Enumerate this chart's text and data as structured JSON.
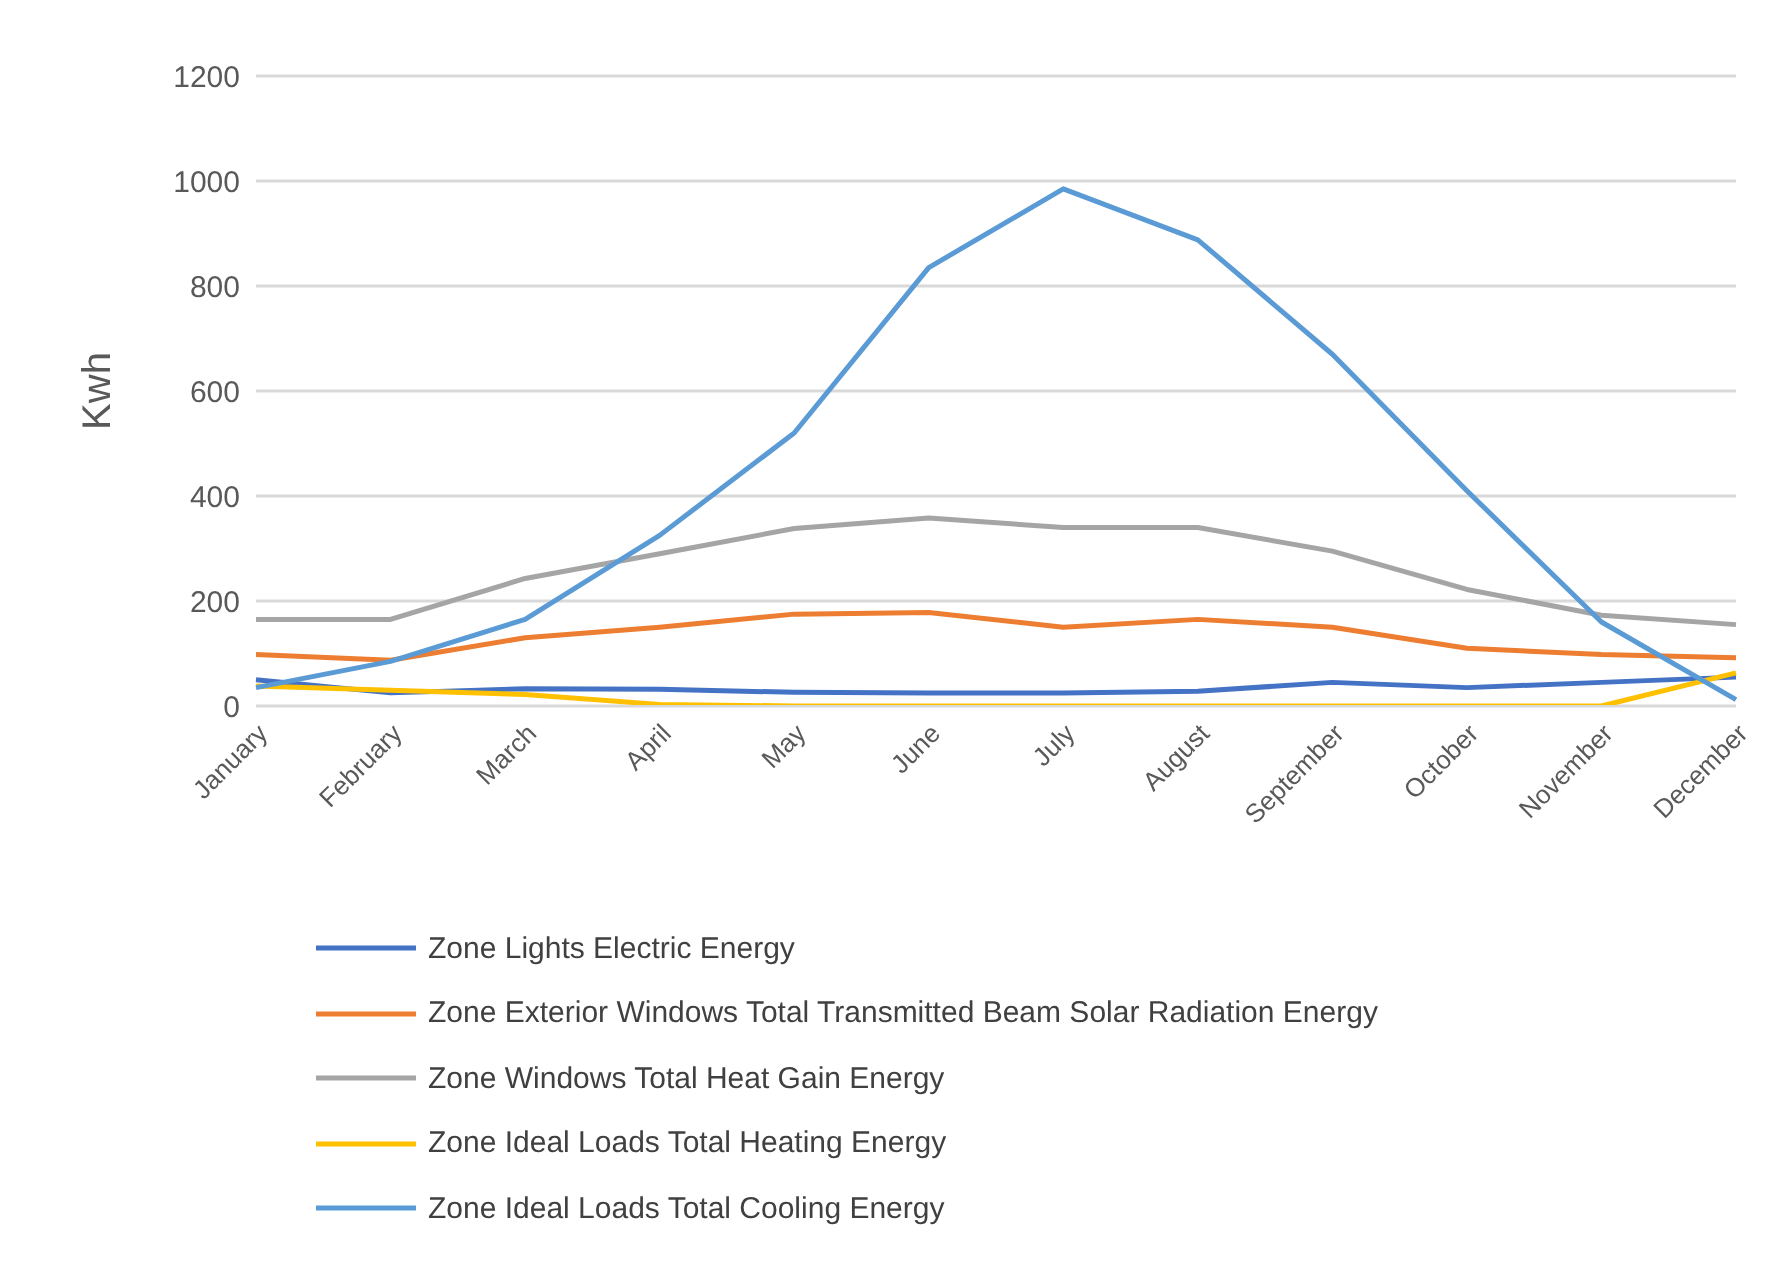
{
  "chart_data": {
    "type": "line",
    "ylabel": "Kwh",
    "categories": [
      "January",
      "February",
      "March",
      "April",
      "May",
      "June",
      "July",
      "August",
      "September",
      "October",
      "November",
      "December"
    ],
    "series": [
      {
        "name": "Zone Lights Electric Energy",
        "color": "#4472c4",
        "values": [
          50,
          25,
          33,
          32,
          26,
          25,
          25,
          28,
          45,
          35,
          45,
          55
        ]
      },
      {
        "name": "Zone Exterior Windows Total Transmitted Beam Solar Radiation Energy",
        "color": "#ed7d31",
        "values": [
          98,
          87,
          130,
          150,
          175,
          178,
          150,
          165,
          150,
          110,
          98,
          92
        ]
      },
      {
        "name": "Zone Windows Total Heat Gain Energy",
        "color": "#a5a5a5",
        "values": [
          165,
          165,
          243,
          290,
          338,
          358,
          340,
          340,
          295,
          222,
          173,
          155
        ]
      },
      {
        "name": "Zone Ideal Loads Total Heating Energy",
        "color": "#ffc000",
        "values": [
          38,
          30,
          22,
          3,
          0,
          0,
          0,
          0,
          0,
          0,
          0,
          63
        ]
      },
      {
        "name": "Zone Ideal Loads Total Cooling Energy",
        "color": "#5b9bd5",
        "values": [
          35,
          85,
          165,
          325,
          520,
          835,
          985,
          888,
          670,
          410,
          160,
          12
        ]
      }
    ],
    "ylim": [
      0,
      1200
    ],
    "yticks": [
      0,
      200,
      400,
      600,
      800,
      1000,
      1200
    ],
    "grid": "y",
    "legend": "bottom",
    "marker": "none",
    "line_style": "solid"
  }
}
